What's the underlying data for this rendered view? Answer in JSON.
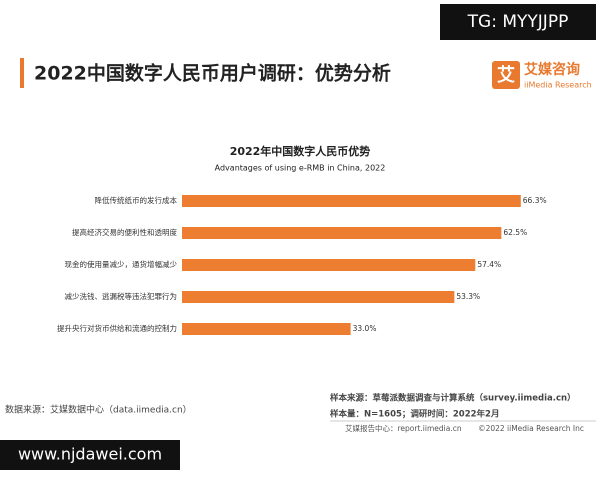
{
  "watermark_top": "TG: MYYJJPP",
  "watermark_bottom": "www.njdawei.com",
  "header": {
    "title": "2022中国数字人民币用户调研：优势分析",
    "logo_icon": "艾",
    "logo_name": "艾媒咨询",
    "logo_sub": "iiMedia Research"
  },
  "chart_data": {
    "type": "hbar",
    "title": "2022年中国数字人民币优势",
    "subtitle": "Advantages of using e-RMB in China, 2022",
    "categories": [
      "降低传统纸币的发行成本",
      "提高经济交易的便利性和透明度",
      "现金的使用量减少，通货增幅减少",
      "减少洗钱、逃漏税等违法犯罪行为",
      "提升央行对货币供给和流通的控制力"
    ],
    "values": [
      66.3,
      62.5,
      57.4,
      53.3,
      33.0
    ],
    "value_labels": [
      "66.3%",
      "62.5%",
      "57.4%",
      "53.3%",
      "33.0%"
    ],
    "color": "#ed7d31"
  },
  "footer": {
    "source": "数据来源：艾媒数据中心（data.iimedia.cn）",
    "sample_source": "样本来源：草莓派数据调查与计算系统（survey.iimedia.cn）",
    "sample_size": "样本量：N=1605；调研时间：2022年2月",
    "report_center": "艾媒报告中心：report.iimedia.cn",
    "copyright": "©2022 iiMedia Research Inc"
  }
}
